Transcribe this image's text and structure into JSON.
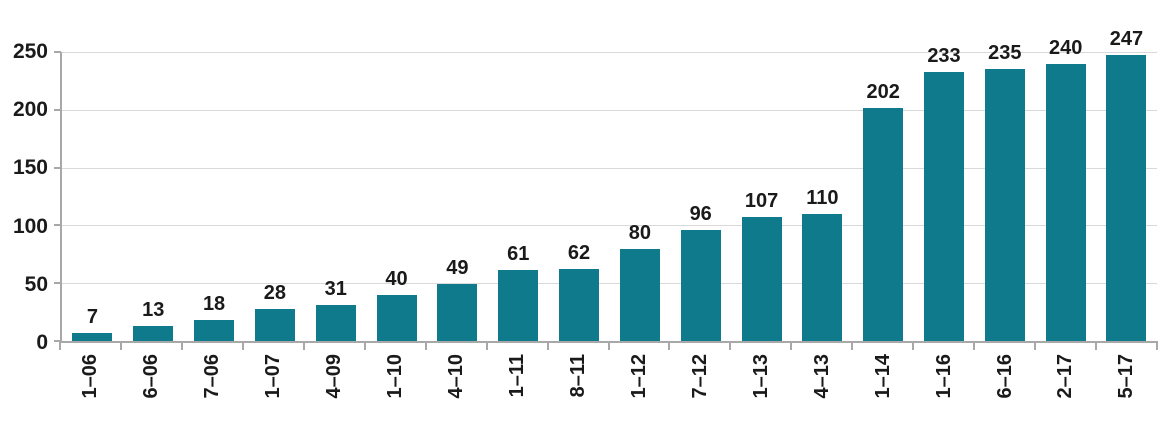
{
  "chart_data": {
    "type": "bar",
    "title": "",
    "xlabel": "",
    "ylabel": "",
    "categories": [
      "1–06",
      "6–06",
      "7–06",
      "1–07",
      "4–09",
      "1–10",
      "4–10",
      "1–11",
      "8–11",
      "1–12",
      "7–12",
      "1–13",
      "4–13",
      "1–14",
      "1–16",
      "6–16",
      "2–17",
      "5–17"
    ],
    "values": [
      7,
      13,
      18,
      28,
      31,
      40,
      49,
      61,
      62,
      80,
      96,
      107,
      110,
      202,
      233,
      235,
      240,
      247
    ],
    "ylim": [
      0,
      250
    ],
    "yticks": [
      0,
      50,
      100,
      150,
      200,
      250
    ],
    "grid": true,
    "legend": "none",
    "bar_color": "#0f7a8c",
    "gridline_color": "#d9d9d9",
    "axis_color": "#a8a8a8",
    "label_color": "#1a1a1a"
  }
}
